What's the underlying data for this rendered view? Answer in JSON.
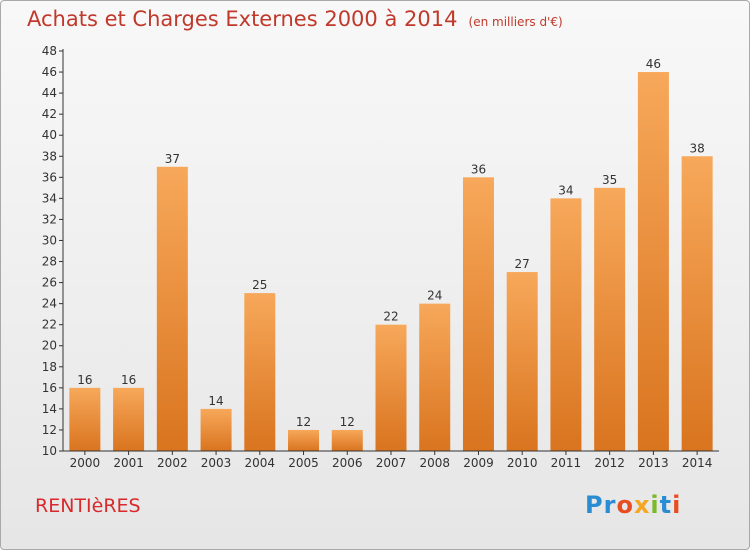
{
  "title": "Achats et Charges Externes 2000 à 2014",
  "subtitle": "(en milliers d'€)",
  "commune": "RENTIèRES",
  "logo": [
    "Pr",
    "o",
    "x",
    "i",
    "t",
    "i"
  ],
  "colors": {
    "bar_top": "#f7a85a",
    "bar_bottom": "#d9741f",
    "title": "#c0392b"
  },
  "chart_data": {
    "type": "bar",
    "title": "Achats et Charges Externes 2000 à 2014",
    "subtitle": "(en milliers d'€)",
    "xlabel": "",
    "ylabel": "",
    "categories": [
      "2000",
      "2001",
      "2002",
      "2003",
      "2004",
      "2005",
      "2006",
      "2007",
      "2008",
      "2009",
      "2010",
      "2011",
      "2012",
      "2013",
      "2014"
    ],
    "values": [
      16,
      16,
      37,
      14,
      25,
      12,
      12,
      22,
      24,
      36,
      27,
      34,
      35,
      46,
      38
    ],
    "ylim": [
      10,
      48
    ],
    "yticks": [
      10,
      12,
      14,
      16,
      18,
      20,
      22,
      24,
      26,
      28,
      30,
      32,
      34,
      36,
      38,
      40,
      42,
      44,
      46,
      48
    ],
    "grid": false,
    "legend": "none"
  }
}
